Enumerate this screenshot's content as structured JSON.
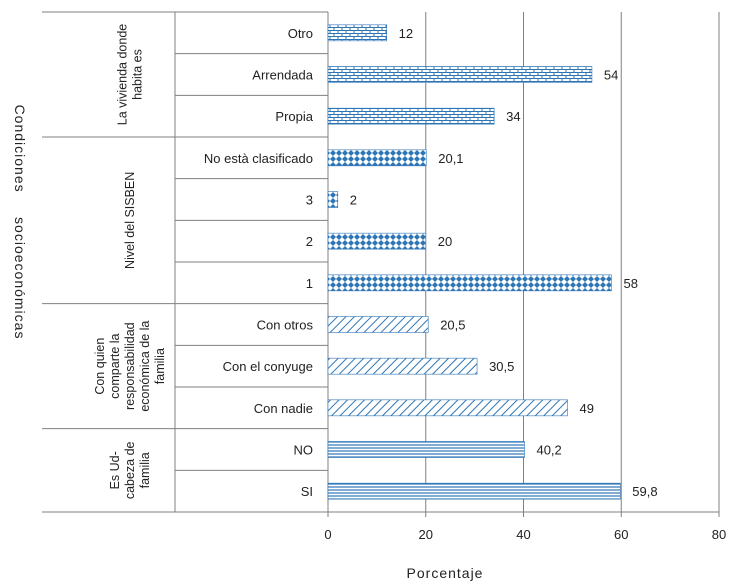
{
  "chart_data": {
    "type": "bar",
    "orientation": "horizontal",
    "xlabel": "Porcentaje",
    "ylabel": "Condiciones     socioeconómicas",
    "xlim": [
      0,
      80
    ],
    "xticks": [
      "0",
      "20",
      "40",
      "60",
      "80"
    ],
    "grid": true,
    "colors": {
      "bar": "#2e75b6",
      "grid": "#808080",
      "axis": "#808080"
    },
    "groups": [
      {
        "label": "La vivienda donde habita es",
        "label_lines": [
          "La vivienda donde",
          "habita es"
        ],
        "pattern": "brick",
        "categories": [
          {
            "name": "Otro",
            "value": 12,
            "value_label": "12"
          },
          {
            "name": "Arrendada",
            "value": 54,
            "value_label": "54"
          },
          {
            "name": "Propia",
            "value": 34,
            "value_label": "34"
          }
        ]
      },
      {
        "label": "Nivel del SISBEN",
        "label_lines": [
          "Nivel del SISBEN"
        ],
        "pattern": "diamond",
        "categories": [
          {
            "name": "No està clasificado",
            "value": 20.1,
            "value_label": "20,1"
          },
          {
            "name": "3",
            "value": 2,
            "value_label": "2"
          },
          {
            "name": "2",
            "value": 20,
            "value_label": "20"
          },
          {
            "name": "1",
            "value": 58,
            "value_label": "58"
          }
        ]
      },
      {
        "label": "Con quien comparte la responsabilidad económica de la familia",
        "label_lines": [
          "Con quien",
          "comparte la",
          "responsabilidad",
          "económica de la",
          "familia"
        ],
        "pattern": "diagonal",
        "categories": [
          {
            "name": "Con otros",
            "value": 20.5,
            "value_label": "20,5"
          },
          {
            "name": "Con el conyuge",
            "value": 30.5,
            "value_label": "30,5"
          },
          {
            "name": "Con nadie",
            "value": 49,
            "value_label": "49"
          }
        ]
      },
      {
        "label": "Es Ud- cabeza de familia",
        "label_lines": [
          "Es Ud-",
          "cabeza de",
          "familia"
        ],
        "pattern": "horizontal",
        "categories": [
          {
            "name": "NO",
            "value": 40.2,
            "value_label": "40,2"
          },
          {
            "name": "SI",
            "value": 59.8,
            "value_label": "59,8"
          }
        ]
      }
    ]
  }
}
